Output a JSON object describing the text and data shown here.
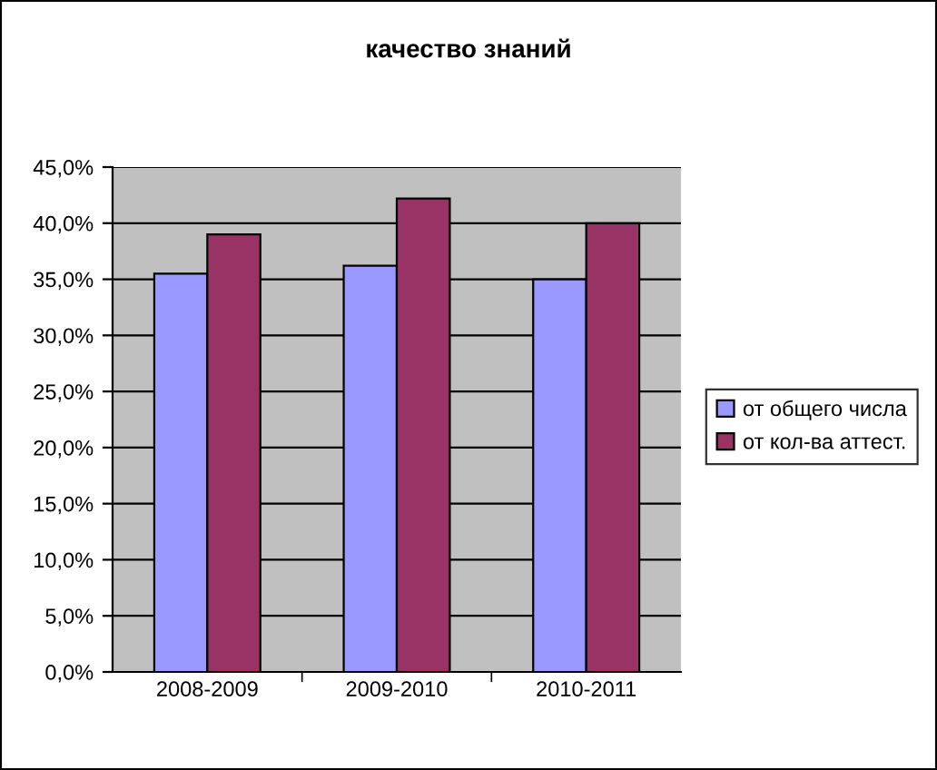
{
  "chart_data": {
    "type": "bar",
    "title": "качество знаний",
    "categories": [
      "2008-2009",
      "2009-2010",
      "2010-2011"
    ],
    "series": [
      {
        "name": "от общего числа",
        "color": "#9999ff",
        "values": [
          35.5,
          36.2,
          35.0
        ]
      },
      {
        "name": "от кол-ва аттест.",
        "color": "#993366",
        "values": [
          39.0,
          42.2,
          40.0
        ]
      }
    ],
    "ylim": [
      0,
      45
    ],
    "yticks": [
      {
        "value": 0,
        "label": "0,0%"
      },
      {
        "value": 5,
        "label": "5,0%"
      },
      {
        "value": 10,
        "label": "10,0%"
      },
      {
        "value": 15,
        "label": "15,0%"
      },
      {
        "value": 20,
        "label": "20,0%"
      },
      {
        "value": 25,
        "label": "25,0%"
      },
      {
        "value": 30,
        "label": "30,0%"
      },
      {
        "value": 35,
        "label": "35,0%"
      },
      {
        "value": 40,
        "label": "40,0%"
      },
      {
        "value": 45,
        "label": "45,0%"
      }
    ],
    "grid": "y",
    "legend": "right"
  }
}
